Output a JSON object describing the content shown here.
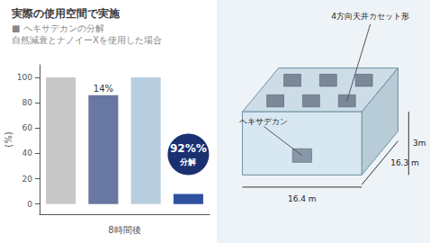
{
  "chart_data": {
    "type": "bar",
    "title": "実際の使用空間で実施",
    "subtitle": "■ ヘキサデカンの分解\n自然減衰とナノイーXを使用した場合",
    "xlabel": "8時間後",
    "ylabel": "(%)",
    "categories": [
      null,
      null,
      null,
      null
    ],
    "values": [
      100,
      86,
      100,
      8
    ],
    "colors": [
      "#c8c8c8",
      "#6878a0",
      "#b8cede",
      "#3050a0"
    ],
    "ylim": [
      -8,
      110
    ],
    "yticks": [
      0,
      20,
      40,
      60,
      80,
      100
    ],
    "grid": false,
    "annotations": [
      "14%",
      "92%%",
      "分解",
      "4方向天井カセット形",
      "ヘキサデカン",
      "3m",
      "16.4 m",
      "16.3 m"
    ]
  }
}
